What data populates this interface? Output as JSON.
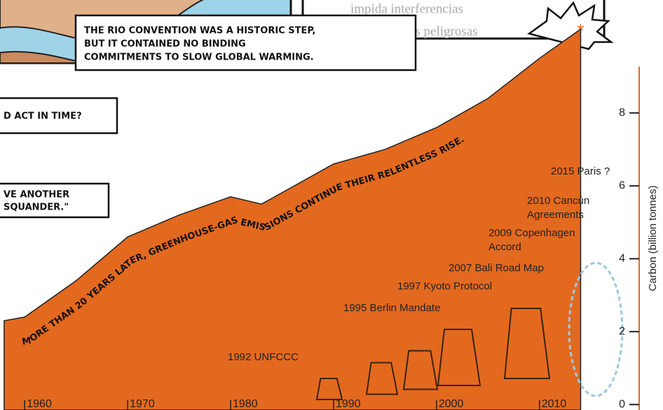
{
  "chart_data": {
    "type": "area",
    "x": [
      1958,
      1960,
      1965,
      1970,
      1975,
      1980,
      1983,
      1990,
      1995,
      2000,
      2005,
      2010,
      2014
    ],
    "series": [
      {
        "color": "#e3691f",
        "values": [
          2.3,
          2.4,
          3.4,
          4.6,
          5.2,
          5.7,
          5.5,
          6.6,
          7.0,
          7.6,
          8.4,
          9.5,
          10.3
        ]
      }
    ],
    "xlim": [
      1957.6,
      2022
    ],
    "ylim": [
      -0.15,
      11.1
    ],
    "xticks": [
      1960,
      1970,
      1980,
      1990,
      2000,
      2010
    ],
    "yticks": [
      0,
      2,
      4,
      6,
      8
    ],
    "y_axis_label": "Carbon (billion tonnes)",
    "curve_caption": "MORE THAN 20 YEARS LATER, GREENHOUSE-GAS EMISSIONS CONTINUE THEIR RELENTLESS RISE.",
    "annotations": [
      [
        "1992  UNFCCC"
      ],
      [
        "1995 Berlin Mandate"
      ],
      [
        "1997 Kyoto Protocol"
      ],
      [
        "2007 Bali Road Map"
      ],
      [
        "2009 Copenhagen",
        "Accord"
      ],
      [
        "2010 Cancún",
        "Agreements"
      ],
      [
        "2015 Paris ?"
      ]
    ],
    "comic": {
      "rio_caption": [
        "THE RIO CONVENTION WAS A HISTORIC STEP,",
        "BUT IT CONTAINED NO BINDING",
        "COMMITMENTS TO SLOW GLOBAL WARMING."
      ],
      "left_box_1": "D ACT IN TIME?",
      "left_box_2": [
        "VE ANOTHER",
        "SQUANDER.\""
      ],
      "spanish_text": [
        "impida interferencias",
        "enas peligrosas"
      ]
    }
  }
}
